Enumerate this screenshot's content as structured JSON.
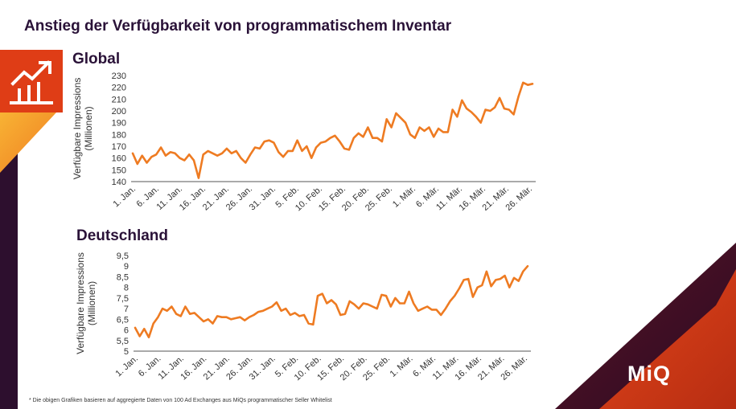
{
  "slide": {
    "title": "Anstieg der Verfügbarkeit von programmatischem Inventar",
    "footnote": "* Die obigen Grafiken basieren auf aggregierte Daten von 100 Ad Exchanges aus MiQs programmatischer Seller Whitelist",
    "logo": "MiQ",
    "icon": "growth-chart-icon",
    "colors": {
      "line": "#ee7b22",
      "title": "#2a1238",
      "accent_dark": "#2d0f2e",
      "accent_red": "#d33a14",
      "accent_orange": "#f29a1f"
    }
  },
  "chart_data": [
    {
      "type": "line",
      "title": "Global",
      "ylabel": "Verfügbare Impressions (Millionen)",
      "ylim": [
        140,
        230
      ],
      "yticks": [
        140,
        150,
        160,
        170,
        180,
        190,
        200,
        210,
        220,
        230
      ],
      "xtick_labels": [
        "1. Jan.",
        "6. Jan.",
        "11. Jan.",
        "16. Jan.",
        "21. Jan.",
        "26. Jan.",
        "31. Jan.",
        "5. Feb.",
        "10. Feb.",
        "15. Feb.",
        "20. Feb.",
        "25. Feb.",
        "1. Mär.",
        "6. Mär.",
        "11. Mär.",
        "16. Mär.",
        "21. Mär.",
        "26. Mär."
      ],
      "color": "#ee7b22",
      "values": [
        164,
        155,
        162,
        156,
        161,
        163,
        169,
        162,
        165,
        164,
        160,
        158,
        163,
        158,
        143,
        163,
        166,
        164,
        162,
        164,
        168,
        164,
        166,
        160,
        156,
        163,
        169,
        168,
        174,
        175,
        173,
        165,
        161,
        166,
        166,
        175,
        166,
        170,
        160,
        169,
        173,
        174,
        177,
        179,
        174,
        168,
        167,
        177,
        181,
        178,
        186,
        177,
        177,
        174,
        193,
        186,
        198,
        194,
        190,
        180,
        177,
        186,
        183,
        186,
        178,
        185,
        182,
        182,
        201,
        195,
        209,
        202,
        199,
        195,
        190,
        201,
        200,
        203,
        211,
        202,
        201,
        197,
        212,
        224,
        222,
        223
      ]
    },
    {
      "type": "line",
      "title": "Deutschland",
      "ylabel": "Verfügbare Impressions (Millionen)",
      "ylim": [
        5,
        9.5
      ],
      "yticks": [
        "5",
        "5,5",
        "6",
        "6,5",
        "7",
        "7,5",
        "8",
        "8,5",
        "9",
        "9,5"
      ],
      "xtick_labels": [
        "1. Jan.",
        "6. Jan.",
        "11. Jan.",
        "16. Jan.",
        "21. Jan.",
        "26. Jan.",
        "31. Jan.",
        "5. Feb.",
        "10. Feb.",
        "15. Feb.",
        "20. Feb.",
        "25. Feb.",
        "1. Mär.",
        "6. Mär.",
        "11. Mär.",
        "16. Mär.",
        "21. Mär.",
        "26. Mär."
      ],
      "color": "#ee7b22",
      "values": [
        6.1,
        5.7,
        6.05,
        5.65,
        6.3,
        6.6,
        7.0,
        6.9,
        7.1,
        6.75,
        6.65,
        7.1,
        6.75,
        6.8,
        6.6,
        6.4,
        6.5,
        6.3,
        6.65,
        6.6,
        6.6,
        6.5,
        6.55,
        6.6,
        6.45,
        6.6,
        6.7,
        6.85,
        6.9,
        7.0,
        7.1,
        7.3,
        6.9,
        7.0,
        6.7,
        6.8,
        6.65,
        6.7,
        6.3,
        6.25,
        7.6,
        7.7,
        7.25,
        7.4,
        7.2,
        6.7,
        6.75,
        7.35,
        7.2,
        7.0,
        7.25,
        7.2,
        7.1,
        7.0,
        7.65,
        7.6,
        7.1,
        7.5,
        7.25,
        7.25,
        7.8,
        7.25,
        6.9,
        7.0,
        7.1,
        6.95,
        6.95,
        6.7,
        7.0,
        7.35,
        7.6,
        7.95,
        8.35,
        8.4,
        7.55,
        8.0,
        8.1,
        8.75,
        8.05,
        8.35,
        8.4,
        8.55,
        8.0,
        8.45,
        8.3,
        8.75,
        9.0
      ]
    }
  ]
}
